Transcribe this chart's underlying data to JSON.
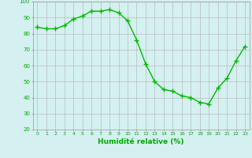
{
  "hours": [
    0,
    1,
    2,
    3,
    4,
    5,
    6,
    7,
    8,
    9,
    10,
    11,
    12,
    13,
    14,
    15,
    16,
    17,
    18,
    19,
    20,
    21,
    22,
    23
  ],
  "values": [
    84,
    83,
    83,
    85,
    89,
    91,
    94,
    94,
    95,
    93,
    88,
    76,
    61,
    50,
    45,
    44,
    41,
    40,
    37,
    36,
    46,
    52,
    63,
    72
  ],
  "line_color": "#00bb00",
  "marker_color": "#00bb00",
  "bg_color": "#d4f0f0",
  "grid_color": "#bbbbbb",
  "xlabel": "Humidité relative (%)",
  "xlabel_color": "#00aa00",
  "tick_color": "#00aa00",
  "ylim": [
    20,
    100
  ],
  "yticks": [
    20,
    30,
    40,
    50,
    60,
    70,
    80,
    90,
    100
  ]
}
